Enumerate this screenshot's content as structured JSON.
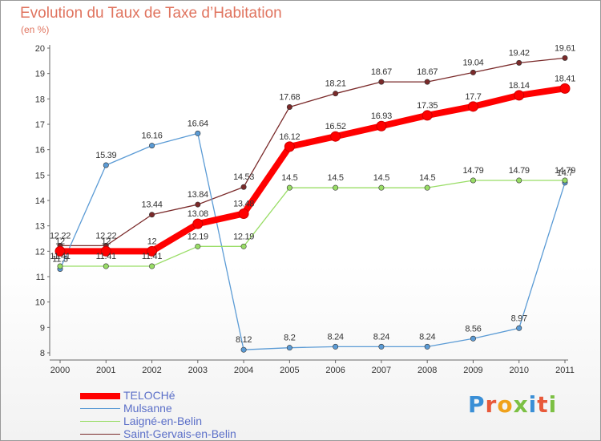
{
  "header": {
    "title": "Evolution du Taux de Taxe d’Habitation",
    "unit": "(en %)"
  },
  "logo": {
    "letters": [
      "P",
      "r",
      "o",
      "x",
      "i",
      "t",
      "i"
    ],
    "colors": [
      "#3a8fd6",
      "#e8593a",
      "#f0a21c",
      "#7cc043",
      "#3a8fd6",
      "#e8593a",
      "#7cc043"
    ]
  },
  "chart_data": {
    "type": "line",
    "x": [
      "2000",
      "2001",
      "2002",
      "2003",
      "2004",
      "2005",
      "2006",
      "2007",
      "2008",
      "2009",
      "2010",
      "2011"
    ],
    "ylim": [
      8,
      20
    ],
    "yticks": [
      "8",
      "9",
      "10",
      "11",
      "12",
      "13",
      "14",
      "15",
      "16",
      "17",
      "18",
      "19",
      "20"
    ],
    "grid": false,
    "legend_position": "bottom-left",
    "series": [
      {
        "name": "TELOCHé",
        "color": "#ff0000",
        "values": [
          12,
          12,
          12,
          13.08,
          13.48,
          16.12,
          16.52,
          16.93,
          17.35,
          17.7,
          18.14,
          18.41
        ],
        "labels": [
          "12",
          "12",
          "12",
          "13.08",
          "13.48",
          "16.12",
          "16.52",
          "16.93",
          "17.35",
          "17.7",
          "18.14",
          "18.41"
        ]
      },
      {
        "name": "Mulsanne",
        "color": "#5b9bd5",
        "values": [
          11.3,
          15.39,
          16.16,
          16.64,
          8.12,
          8.2,
          8.24,
          8.24,
          8.24,
          8.56,
          8.97,
          14.7
        ],
        "labels": [
          "11.3",
          "15.39",
          "16.16",
          "16.64",
          "8.12",
          "8.2",
          "8.24",
          "8.24",
          "8.24",
          "8.56",
          "8.97",
          "14.7"
        ]
      },
      {
        "name": "Laigné-en-Belin",
        "color": "#99dd66",
        "values": [
          11.41,
          11.41,
          11.41,
          12.19,
          12.19,
          14.5,
          14.5,
          14.5,
          14.5,
          14.79,
          14.79,
          14.79
        ],
        "labels": [
          "11.41",
          "11.41",
          "11.41",
          "12.19",
          "12.19",
          "14.5",
          "14.5",
          "14.5",
          "14.5",
          "14.79",
          "14.79",
          "14.79"
        ]
      },
      {
        "name": "Saint-Gervais-en-Belin",
        "color": "#7a2a2a",
        "values": [
          12.22,
          12.22,
          13.44,
          13.84,
          14.53,
          17.68,
          18.21,
          18.67,
          18.67,
          19.04,
          19.42,
          19.61
        ],
        "labels": [
          "12.22",
          "12.22",
          "13.44",
          "13.84",
          "14.53",
          "17.68",
          "18.21",
          "18.67",
          "18.67",
          "19.04",
          "19.42",
          "19.61"
        ]
      }
    ]
  }
}
